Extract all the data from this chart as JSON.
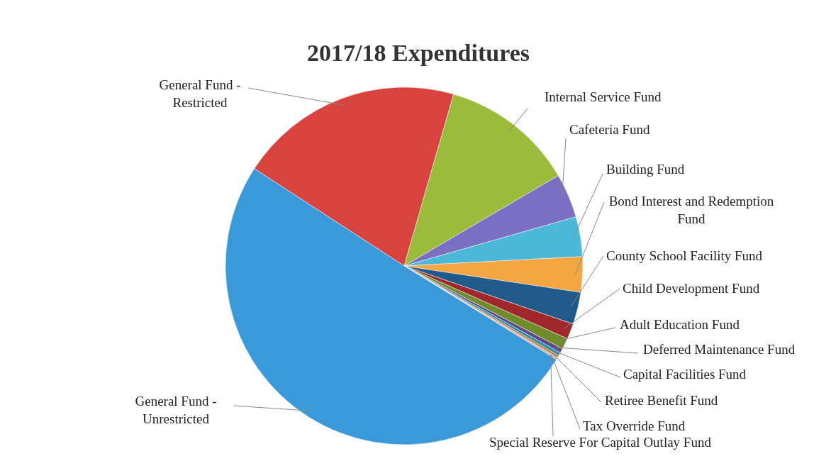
{
  "chart_data": {
    "type": "pie",
    "title": "2017/18 Expenditures",
    "categories": [
      "General Fund - Restricted",
      "Internal Service Fund",
      "Cafeteria Fund",
      "Building Fund",
      "Bond Interest and Redemption Fund",
      "County School Facility Fund",
      "Child Development Fund",
      "Adult Education Fund",
      "Deferred Maintenance Fund",
      "Capital Facilities Fund",
      "Retiree Benefit Fund",
      "Tax Override Fund",
      "Special Reserve For Capital Outlay Fund",
      "General Fund - Unrestricted"
    ],
    "values": [
      20.3,
      12.1,
      4.0,
      3.6,
      3.2,
      2.9,
      1.4,
      1.0,
      0.4,
      0.3,
      0.2,
      0.1,
      0.1,
      50.4
    ],
    "colors": [
      "#d9433f",
      "#9bbb3b",
      "#7b6fc4",
      "#4bb8d8",
      "#f4a641",
      "#1f5a8a",
      "#a0282c",
      "#6e8c2a",
      "#5a4a8a",
      "#2a8caa",
      "#c87a20",
      "#7fa8d8",
      "#e08080",
      "#3a9ad9"
    ]
  }
}
